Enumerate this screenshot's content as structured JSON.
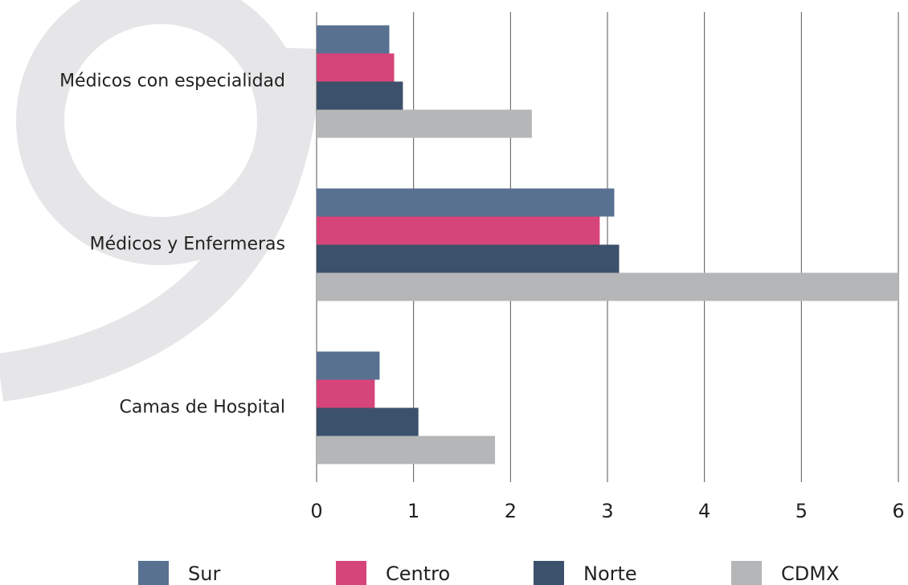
{
  "chart_data": {
    "type": "bar",
    "orientation": "horizontal",
    "categories": [
      "Médicos con especialidad",
      "Médicos y Enfermeras",
      "Camas de Hospital"
    ],
    "series": [
      {
        "name": "Sur",
        "color": "#587191",
        "values": [
          0.75,
          3.07,
          0.65
        ]
      },
      {
        "name": "Centro",
        "color": "#d6457a",
        "values": [
          0.8,
          2.92,
          0.6
        ]
      },
      {
        "name": "Norte",
        "color": "#3c516b",
        "values": [
          0.89,
          3.12,
          1.05
        ]
      },
      {
        "name": "CDMX",
        "color": "#b5b6b8",
        "values": [
          2.22,
          6,
          1.84
        ]
      }
    ],
    "xlim": [
      0,
      6
    ],
    "xticks": [
      0,
      1,
      2,
      3,
      4,
      5,
      6
    ],
    "grid": true,
    "legend": "bottom"
  }
}
